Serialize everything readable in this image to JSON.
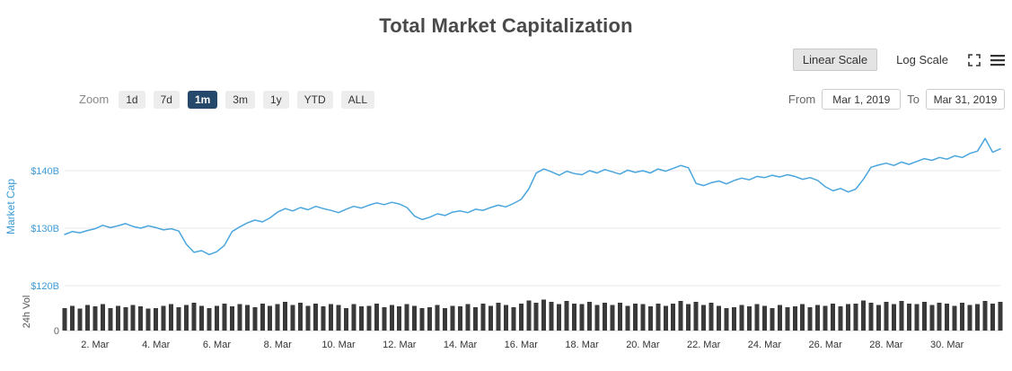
{
  "title": "Total Market Capitalization",
  "scale_controls": {
    "linear_label": "Linear Scale",
    "log_label": "Log Scale"
  },
  "icons": {
    "fullscreen": "expand-arrows",
    "menu": "hamburger"
  },
  "zoom": {
    "label": "Zoom",
    "buttons": [
      "1d",
      "7d",
      "1m",
      "3m",
      "1y",
      "YTD",
      "ALL"
    ],
    "selected": "1m"
  },
  "range": {
    "from_label": "From",
    "from_value": "Mar 1, 2019",
    "to_label": "To",
    "to_value": "Mar 31, 2019"
  },
  "colors": {
    "line": "#4AA6DD",
    "axis_blue": "#3D9BD5",
    "volume_bar": "#3A3A3A",
    "grid": "#E8E8E8",
    "axis_line": "#D4D4D4",
    "tick_text": "#333333",
    "vol_text": "#666666",
    "selected_button_bg": "#26486B"
  },
  "chart_data": {
    "type": "line",
    "title": "Total Market Capitalization",
    "x_unit": "March 2019 (day of month)",
    "x_start": 1,
    "x_step": 0.25,
    "xticks": [
      "2. Mar",
      "4. Mar",
      "6. Mar",
      "8. Mar",
      "10. Mar",
      "12. Mar",
      "14. Mar",
      "16. Mar",
      "18. Mar",
      "20. Mar",
      "22. Mar",
      "24. Mar",
      "26. Mar",
      "28. Mar",
      "30. Mar"
    ],
    "yaxis": {
      "title": "Market Cap",
      "unit": "USD billions",
      "min": 120,
      "max": 146,
      "labels": [
        {
          "text": "$140B",
          "value": 140
        },
        {
          "text": "$130B",
          "value": 130
        },
        {
          "text": "$120B",
          "value": 120
        }
      ]
    },
    "vol_axis": {
      "title": "24h Vol",
      "unit": "USD billions",
      "min": 0,
      "max": 50,
      "zero_label": "0"
    },
    "series": [
      {
        "name": "Market Cap",
        "type": "line",
        "values": [
          128.9,
          129.4,
          129.2,
          129.6,
          129.9,
          130.5,
          130.1,
          130.4,
          130.8,
          130.3,
          130.0,
          130.4,
          130.1,
          129.7,
          129.9,
          129.5,
          127.2,
          125.8,
          126.1,
          125.4,
          125.9,
          127.0,
          129.4,
          130.2,
          130.9,
          131.4,
          131.1,
          131.8,
          132.8,
          133.4,
          133.0,
          133.6,
          133.2,
          133.8,
          133.4,
          133.1,
          132.7,
          133.3,
          133.8,
          133.5,
          134.0,
          134.4,
          134.1,
          134.5,
          134.2,
          133.6,
          132.1,
          131.5,
          131.9,
          132.5,
          132.2,
          132.8,
          133.0,
          132.7,
          133.3,
          133.1,
          133.6,
          134.0,
          133.7,
          134.3,
          135.0,
          136.8,
          139.6,
          140.3,
          139.8,
          139.2,
          139.9,
          139.5,
          139.3,
          140.0,
          139.6,
          140.2,
          139.8,
          139.4,
          140.1,
          139.7,
          140.0,
          139.6,
          140.3,
          139.9,
          140.4,
          140.9,
          140.5,
          137.8,
          137.4,
          137.9,
          138.2,
          137.7,
          138.3,
          138.7,
          138.4,
          139.0,
          138.8,
          139.2,
          138.9,
          139.3,
          139.0,
          138.5,
          138.8,
          138.3,
          137.2,
          136.5,
          136.9,
          136.3,
          136.8,
          138.5,
          140.6,
          141.0,
          141.3,
          140.9,
          141.5,
          141.1,
          141.6,
          142.1,
          141.8,
          142.3,
          142.0,
          142.6,
          142.3,
          143.0,
          143.4,
          145.6,
          143.2,
          143.8
        ]
      },
      {
        "name": "24h Vol",
        "type": "bar",
        "values": [
          30,
          33,
          29,
          34,
          32,
          35,
          30,
          33,
          31,
          34,
          32,
          29,
          30,
          33,
          35,
          31,
          34,
          37,
          33,
          30,
          33,
          36,
          32,
          35,
          34,
          31,
          36,
          33,
          35,
          38,
          34,
          37,
          33,
          36,
          32,
          35,
          34,
          30,
          35,
          32,
          33,
          36,
          31,
          34,
          32,
          35,
          33,
          30,
          31,
          34,
          30,
          33,
          32,
          35,
          31,
          36,
          33,
          37,
          34,
          31,
          36,
          40,
          37,
          41,
          38,
          35,
          39,
          36,
          35,
          38,
          34,
          37,
          34,
          37,
          33,
          36,
          35,
          32,
          36,
          33,
          36,
          39,
          35,
          38,
          34,
          37,
          33,
          30,
          31,
          34,
          32,
          35,
          33,
          30,
          34,
          31,
          32,
          35,
          31,
          34,
          33,
          36,
          32,
          35,
          36,
          40,
          37,
          34,
          38,
          35,
          39,
          36,
          35,
          38,
          34,
          37,
          36,
          33,
          37,
          34,
          35,
          39,
          36,
          38
        ]
      }
    ]
  }
}
